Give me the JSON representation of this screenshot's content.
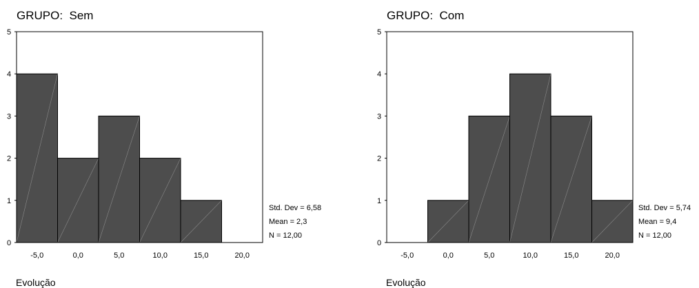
{
  "chart_data": [
    {
      "type": "bar",
      "title": "GRUPO:  Sem",
      "xlabel": "Evolução",
      "ylabel": "",
      "ylim": [
        0,
        5
      ],
      "yticks": [
        "0",
        "1",
        "2",
        "3",
        "4",
        "5"
      ],
      "x_tick_labels": [
        "-5,0",
        "0,0",
        "5,0",
        "10,0",
        "15,0",
        "20,0"
      ],
      "bin_width": 5,
      "bins": [
        {
          "center": -5,
          "value": 4
        },
        {
          "center": 0,
          "value": 2
        },
        {
          "center": 5,
          "value": 3
        },
        {
          "center": 10,
          "value": 2
        },
        {
          "center": 15,
          "value": 1
        },
        {
          "center": 20,
          "value": 0
        }
      ],
      "stats": {
        "std_dev": "Std. Dev = 6,58",
        "mean": "Mean = 2,3",
        "n": "N = 12,00"
      },
      "bar_color": "#4d4d4d"
    },
    {
      "type": "bar",
      "title": "GRUPO:  Com",
      "xlabel": "Evolução",
      "ylabel": "",
      "ylim": [
        0,
        5
      ],
      "yticks": [
        "0",
        "1",
        "2",
        "3",
        "4",
        "5"
      ],
      "x_tick_labels": [
        "-5,0",
        "0,0",
        "5,0",
        "10,0",
        "15,0",
        "20,0"
      ],
      "bin_width": 5,
      "bins": [
        {
          "center": -5,
          "value": 0
        },
        {
          "center": 0,
          "value": 1
        },
        {
          "center": 5,
          "value": 3
        },
        {
          "center": 10,
          "value": 4
        },
        {
          "center": 15,
          "value": 3
        },
        {
          "center": 20,
          "value": 1
        }
      ],
      "stats": {
        "std_dev": "Std. Dev = 5,74",
        "mean": "Mean = 9,4",
        "n": "N = 12,00"
      },
      "bar_color": "#4d4d4d"
    }
  ]
}
